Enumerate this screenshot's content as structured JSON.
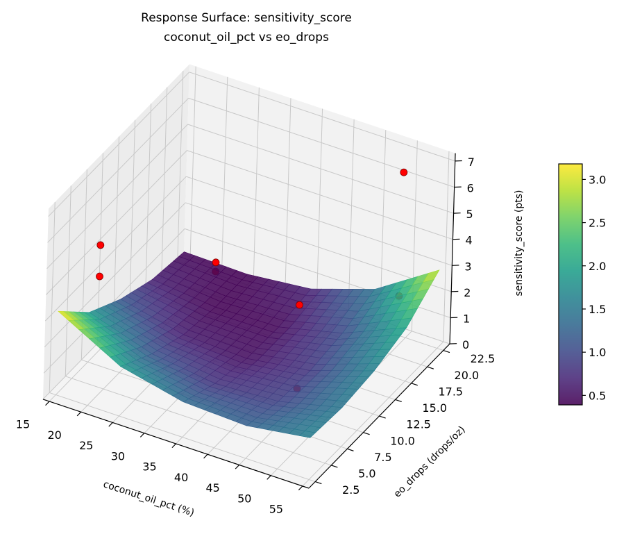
{
  "chart_data": {
    "type": "surface3d",
    "title": "Response Surface: sensitivity_score",
    "subtitle": "coconut_oil_pct vs eo_drops",
    "xlabel": "coconut_oil_pct (%)",
    "ylabel": "eo_drops (drops/oz)",
    "zlabel": "sensitivity_score (pts)",
    "xlim": [
      14,
      56
    ],
    "ylim": [
      1.5,
      23.5
    ],
    "zlim": [
      0,
      7.3
    ],
    "xticks": [
      "15",
      "20",
      "25",
      "30",
      "35",
      "40",
      "45",
      "50",
      "55"
    ],
    "yticks": [
      "2.5",
      "5.0",
      "7.5",
      "10.0",
      "12.5",
      "15.0",
      "17.5",
      "20.0",
      "22.5"
    ],
    "zticks": [
      "0",
      "1",
      "2",
      "3",
      "4",
      "5",
      "6",
      "7"
    ],
    "grid": true,
    "colormap": "viridis",
    "surface": {
      "x": [
        15,
        25,
        35,
        45,
        55
      ],
      "y": [
        2.5,
        7.5,
        12.5,
        17.5,
        22.5
      ],
      "z": [
        [
          3.2,
          1.9,
          1.35,
          1.25,
          1.6
        ],
        [
          1.9,
          1.125,
          0.8,
          0.925,
          1.5
        ],
        [
          1.15,
          0.6,
          0.5,
          0.85,
          1.65
        ],
        [
          0.65,
          0.4,
          0.45,
          1.025,
          2.05
        ],
        [
          0.45,
          0.4,
          0.65,
          1.45,
          3.0
        ]
      ]
    },
    "points": [
      {
        "x": 49,
        "y": 22.5,
        "z": 6.25
      },
      {
        "x": 15,
        "y": 9,
        "z": 4.1
      },
      {
        "x": 15,
        "y": 9,
        "z": 2.9
      },
      {
        "x": 20,
        "y": 22.5,
        "z": 0.45
      },
      {
        "x": 20,
        "y": 22.5,
        "z": 0.1
      },
      {
        "x": 43,
        "y": 12.5,
        "z": 3.2
      },
      {
        "x": 43,
        "y": 12.5,
        "z": 0.0
      },
      {
        "x": 49.4,
        "y": 21.9,
        "z": 1.7
      }
    ],
    "point_color": "#ff0000",
    "colorbar": {
      "range": [
        0.39,
        3.18
      ],
      "ticks": [
        "0.5",
        "1.0",
        "1.5",
        "2.0",
        "2.5",
        "3.0"
      ]
    }
  }
}
